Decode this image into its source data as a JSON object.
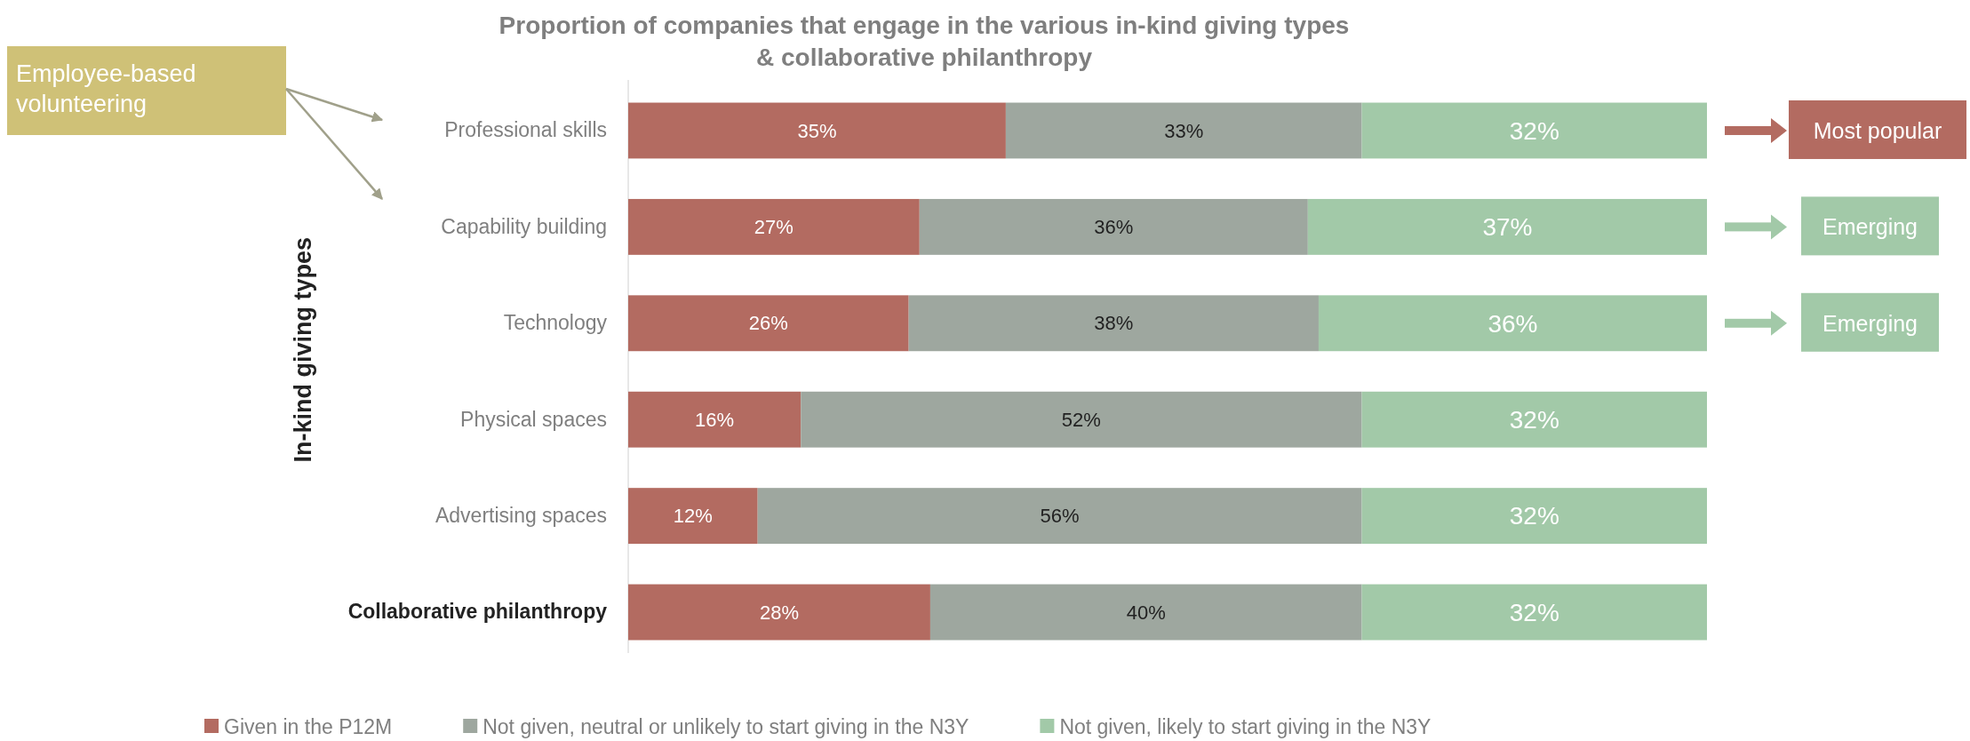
{
  "chart_data": {
    "type": "bar",
    "orientation": "horizontal",
    "stacked": true,
    "title": "Proportion of companies that engage in the various in-kind giving types\n& collaborative philanthropy",
    "ylabel": "In-kind giving types",
    "categories": [
      "Professional skills",
      "Capability building",
      "Technology",
      "Physical spaces",
      "Advertising spaces",
      "Collaborative philanthropy"
    ],
    "series": [
      {
        "name": "Given in the P12M",
        "color": "#b36b61",
        "values": [
          35,
          27,
          26,
          16,
          12,
          28
        ],
        "value_labels": [
          "35%",
          "27%",
          "26%",
          "16%",
          "12%",
          "28%"
        ]
      },
      {
        "name": "Not given, neutral or unlikely to start giving in the N3Y",
        "color": "#9ea79f",
        "values": [
          33,
          36,
          38,
          52,
          56,
          40
        ],
        "value_labels": [
          "33%",
          "36%",
          "38%",
          "52%",
          "56%",
          "40%"
        ]
      },
      {
        "name": "Not given, likely to start giving in the N3Y",
        "color": "#a2c9a8",
        "values": [
          32,
          37,
          36,
          32,
          32,
          32
        ],
        "value_labels": [
          "32%",
          "37%",
          "36%",
          "32%",
          "32%",
          "32%"
        ]
      }
    ],
    "xlim": [
      0,
      100
    ],
    "tick_labels": "y",
    "legend": "bottom",
    "annotations": [
      "Employee-based volunteering",
      "Most popular",
      "Emerging",
      "Emerging"
    ]
  }
}
